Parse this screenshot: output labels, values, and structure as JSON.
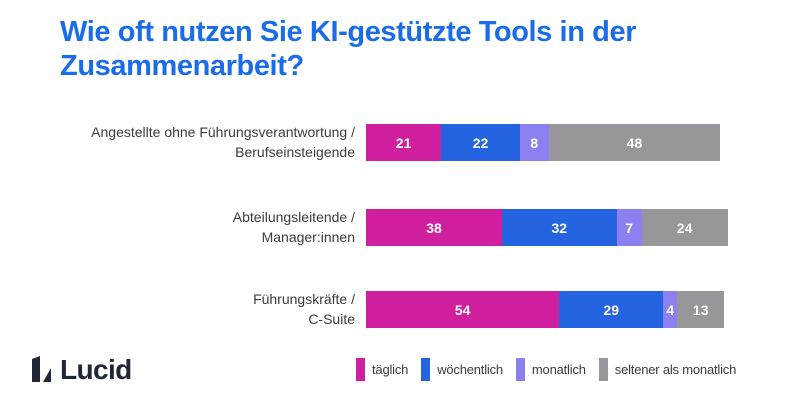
{
  "chart_data": {
    "type": "bar",
    "variant": "horizontal-stacked-100",
    "title": "Wie oft nutzen Sie KI-gestützte Tools in der Zusammenarbeit?",
    "categories": [
      "Angestellte ohne Führungsverantwortung / Berufseinsteigende",
      "Abteilungsleitende / Manager:innen",
      "Führungskräfte / C-Suite"
    ],
    "categories_lines": [
      [
        "Angestellte ohne Führungsverantwortung /",
        "Berufseinsteigende"
      ],
      [
        "Abteilungsleitende /",
        "Manager:innen"
      ],
      [
        "Führungskräfte /",
        "C-Suite"
      ]
    ],
    "series": [
      {
        "name": "täglich",
        "color": "#cf1f9e",
        "values": [
          21,
          38,
          54
        ]
      },
      {
        "name": "wöchentlich",
        "color": "#2564e0",
        "values": [
          22,
          32,
          29
        ]
      },
      {
        "name": "monatlich",
        "color": "#8b80f0",
        "values": [
          8,
          7,
          4
        ]
      },
      {
        "name": "seltener als monatlich",
        "color": "#97969b",
        "values": [
          48,
          24,
          13
        ]
      }
    ],
    "value_unit": "percent",
    "value_labels_shown": true,
    "legend_position": "bottom",
    "axes_shown": false,
    "grid": false
  },
  "branding": {
    "logo_text": "Lucid"
  },
  "colors": {
    "title_blue": "#1a6ce8",
    "logo_navy": "#212735",
    "background": "#ffffff",
    "category_text": "#3b3b40",
    "bar_value_text": "#ffffff",
    "legend_text": "#3a3a3e"
  }
}
